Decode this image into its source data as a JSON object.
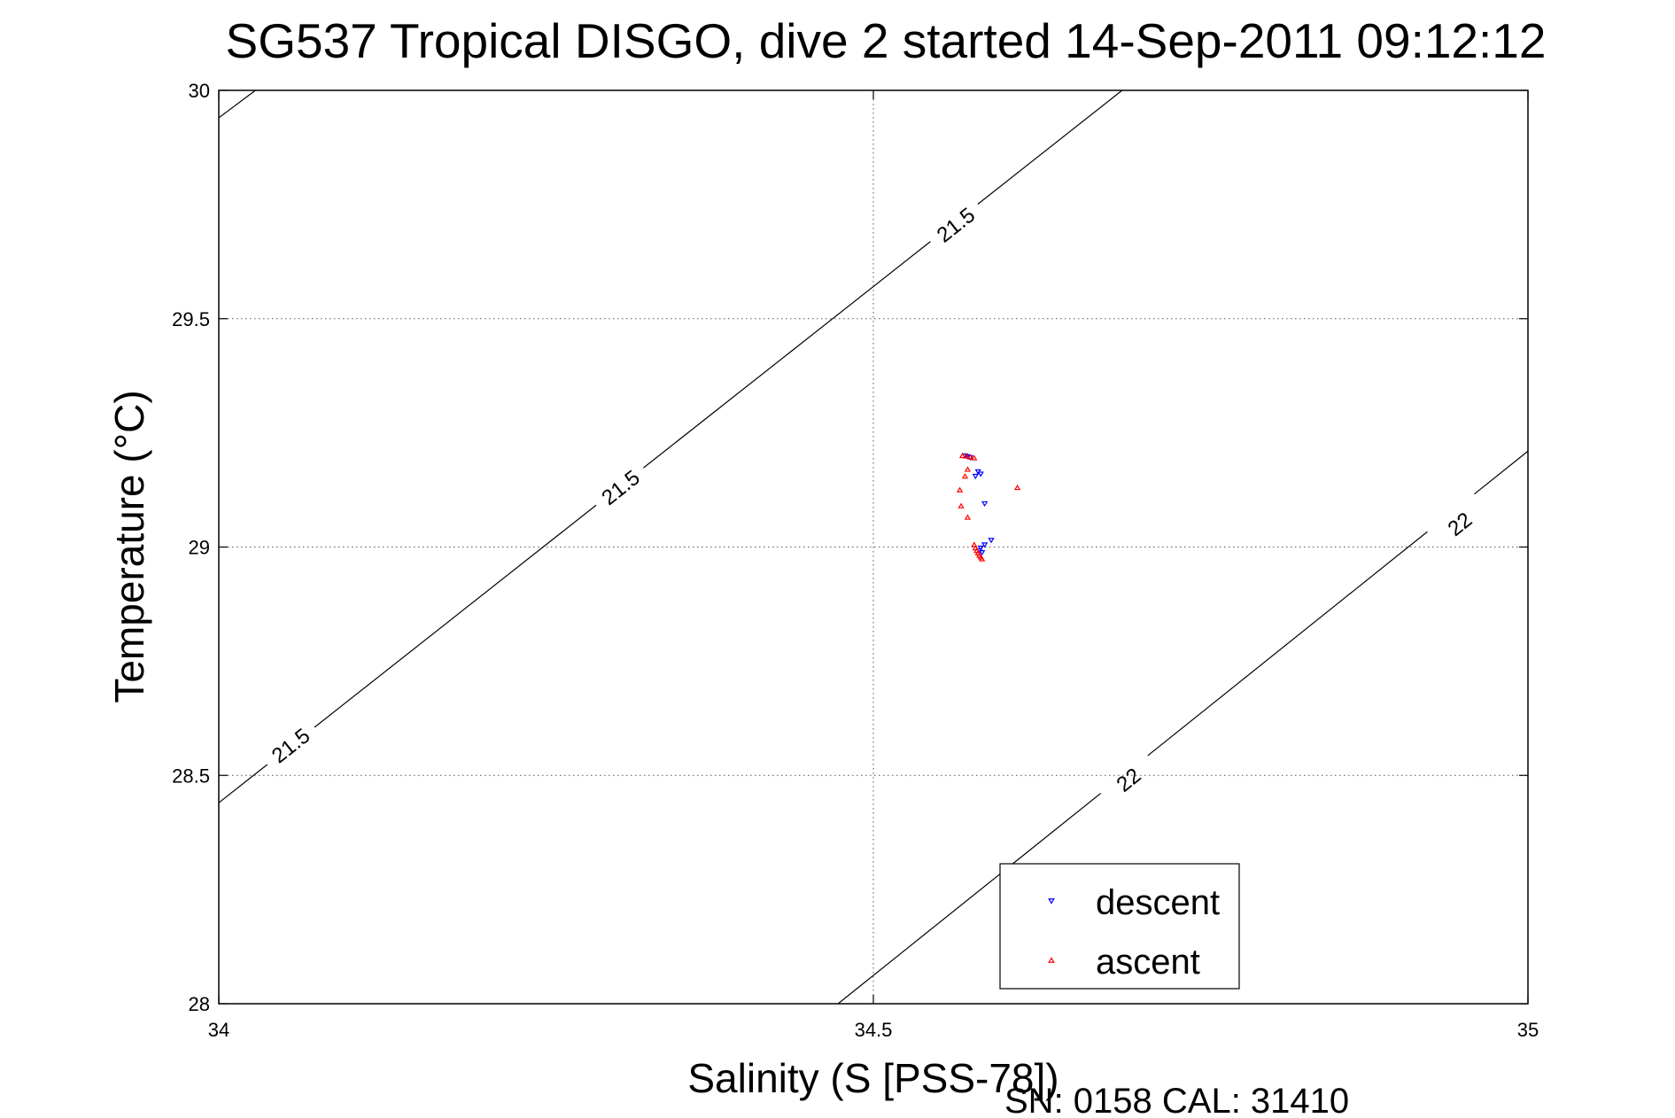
{
  "chart_data": {
    "type": "scatter",
    "title": "SG537 Tropical DISGO, dive 2 started 14-Sep-2011 09:12:12",
    "xlabel": "Salinity (S [PSS-78])",
    "ylabel": "Temperature (°C)",
    "xlim": [
      34,
      35
    ],
    "ylim": [
      28,
      30
    ],
    "xticks": [
      {
        "value": 34,
        "label": "34"
      },
      {
        "value": 34.5,
        "label": "34.5"
      },
      {
        "value": 35,
        "label": "35"
      }
    ],
    "yticks": [
      {
        "value": 28,
        "label": "28"
      },
      {
        "value": 28.5,
        "label": "28.5"
      },
      {
        "value": 29,
        "label": "29"
      },
      {
        "value": 29.5,
        "label": "29.5"
      },
      {
        "value": 30,
        "label": "30"
      }
    ],
    "grid": true,
    "legend_position": "bottom-right",
    "contours": [
      {
        "level": "21.5",
        "line": [
          [
            34,
            28.44
          ],
          [
            34.69,
            30.0
          ]
        ],
        "labels": [
          [
            34.055,
            28.565
          ],
          [
            34.307,
            29.13
          ],
          [
            34.563,
            29.705
          ]
        ]
      },
      {
        "level": "21.5",
        "line": [
          [
            34,
            29.94
          ],
          [
            34.028,
            30.0
          ]
        ]
      },
      {
        "level": "22",
        "line": [
          [
            34.473,
            28.0
          ],
          [
            35,
            29.21
          ]
        ],
        "labels": [
          [
            34.695,
            28.49
          ],
          [
            34.948,
            29.05
          ]
        ]
      }
    ],
    "series": [
      {
        "name": "descent",
        "color": "#0000ff",
        "marker": "triangle-down",
        "points": [
          [
            34.57,
            29.2
          ],
          [
            34.572,
            29.198
          ],
          [
            34.574,
            29.196
          ],
          [
            34.58,
            29.165
          ],
          [
            34.582,
            29.16
          ],
          [
            34.578,
            29.155
          ],
          [
            34.585,
            29.095
          ],
          [
            34.59,
            29.015
          ],
          [
            34.585,
            29.005
          ],
          [
            34.582,
            28.998
          ],
          [
            34.581,
            28.992
          ],
          [
            34.583,
            28.988
          ]
        ]
      },
      {
        "name": "ascent",
        "color": "#ff0000",
        "marker": "triangle-up",
        "points": [
          [
            34.568,
            29.2
          ],
          [
            34.571,
            29.199
          ],
          [
            34.574,
            29.197
          ],
          [
            34.577,
            29.195
          ],
          [
            34.572,
            29.17
          ],
          [
            34.57,
            29.155
          ],
          [
            34.566,
            29.125
          ],
          [
            34.567,
            29.09
          ],
          [
            34.572,
            29.065
          ],
          [
            34.61,
            29.13
          ],
          [
            34.577,
            29.005
          ],
          [
            34.578,
            28.998
          ],
          [
            34.579,
            28.992
          ],
          [
            34.58,
            28.987
          ],
          [
            34.581,
            28.982
          ],
          [
            34.582,
            28.978
          ],
          [
            34.583,
            28.974
          ]
        ]
      }
    ]
  },
  "footer": {
    "serial": "SN: 0158  CAL: 31410"
  }
}
